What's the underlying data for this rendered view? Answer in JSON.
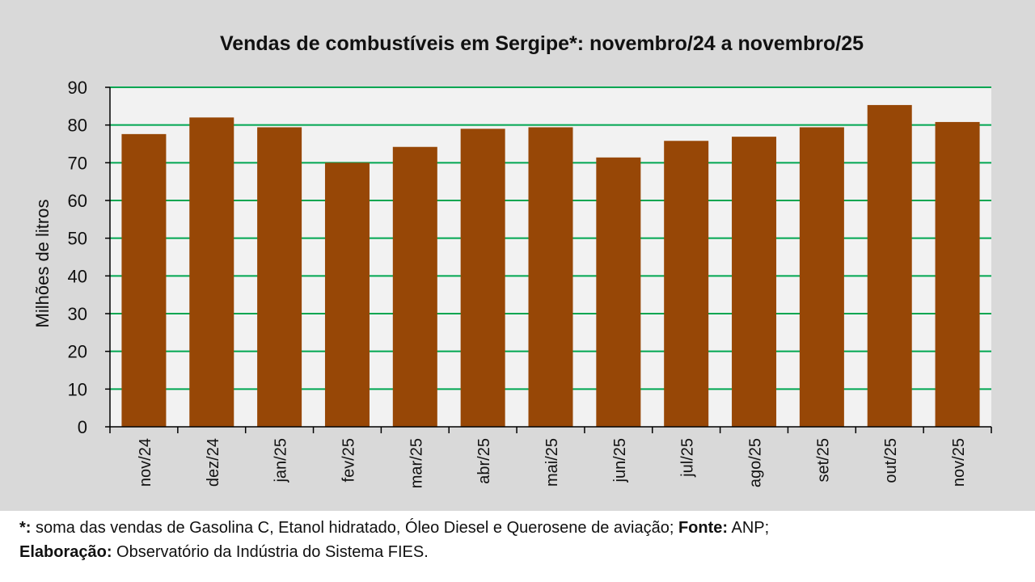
{
  "chart_data": {
    "type": "bar",
    "title": "Vendas de combustíveis em Sergipe*: novembro/24 a novembro/25",
    "ylabel": "Milhões de litros",
    "xlabel": "",
    "categories": [
      "nov/24",
      "dez/24",
      "jan/25",
      "fev/25",
      "mar/25",
      "abr/25",
      "mai/25",
      "jun/25",
      "jul/25",
      "ago/25",
      "set/25",
      "out/25",
      "nov/25"
    ],
    "values": [
      77.6,
      82.0,
      79.4,
      70.0,
      74.2,
      79.0,
      79.4,
      71.4,
      75.8,
      76.9,
      79.4,
      85.3,
      80.8
    ],
    "ylim": [
      0,
      90
    ],
    "yticks": [
      0,
      10,
      20,
      30,
      40,
      50,
      60,
      70,
      80,
      90
    ],
    "grid": true,
    "colors": {
      "bar": "#974706",
      "grid": "#00a651",
      "plot_bg": "#f2f2f2",
      "chart_bg": "#d9d9d9"
    }
  },
  "footnote": {
    "line1_bold": "*:",
    "line1_text": " soma das vendas de Gasolina C, Etanol hidratado, Óleo Diesel e Querosene de aviação; ",
    "source_bold": "Fonte:",
    "source_text": " ANP;",
    "line2_bold": "Elaboração:",
    "line2_text": " Observatório da Indústria do Sistema FIES."
  }
}
